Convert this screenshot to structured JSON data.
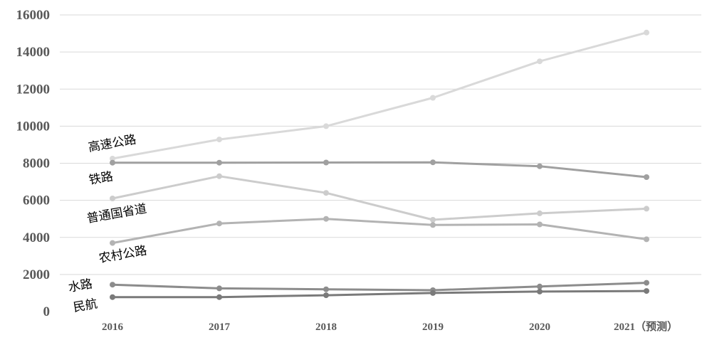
{
  "chart_data": {
    "type": "line",
    "title": "",
    "xlabel": "",
    "ylabel": "",
    "categories": [
      "2016",
      "2017",
      "2018",
      "2019",
      "2020",
      "2021（预测）"
    ],
    "yticks": [
      "0",
      "2000",
      "4000",
      "6000",
      "8000",
      "10000",
      "12000",
      "14000",
      "16000"
    ],
    "ylim": [
      0,
      16000
    ],
    "grid": true,
    "legend": "none",
    "series": [
      {
        "name": "高速公路",
        "values": [
          8250,
          9280,
          10000,
          11530,
          13500,
          15050
        ],
        "color": "#d9d9d9"
      },
      {
        "name": "铁路",
        "values": [
          8030,
          8030,
          8040,
          8050,
          7840,
          7250
        ],
        "color": "#a0a0a0"
      },
      {
        "name": "普通国省道",
        "values": [
          6100,
          7300,
          6400,
          4950,
          5300,
          5550
        ],
        "color": "#cccccc"
      },
      {
        "name": "农村公路",
        "values": [
          3700,
          4750,
          5000,
          4670,
          4700,
          3900
        ],
        "color": "#b3b3b3"
      },
      {
        "name": "水路",
        "values": [
          1450,
          1250,
          1200,
          1150,
          1350,
          1550
        ],
        "color": "#8c8c8c"
      },
      {
        "name": "民航",
        "values": [
          780,
          780,
          880,
          1000,
          1080,
          1110
        ],
        "color": "#7a7a7a"
      }
    ]
  }
}
